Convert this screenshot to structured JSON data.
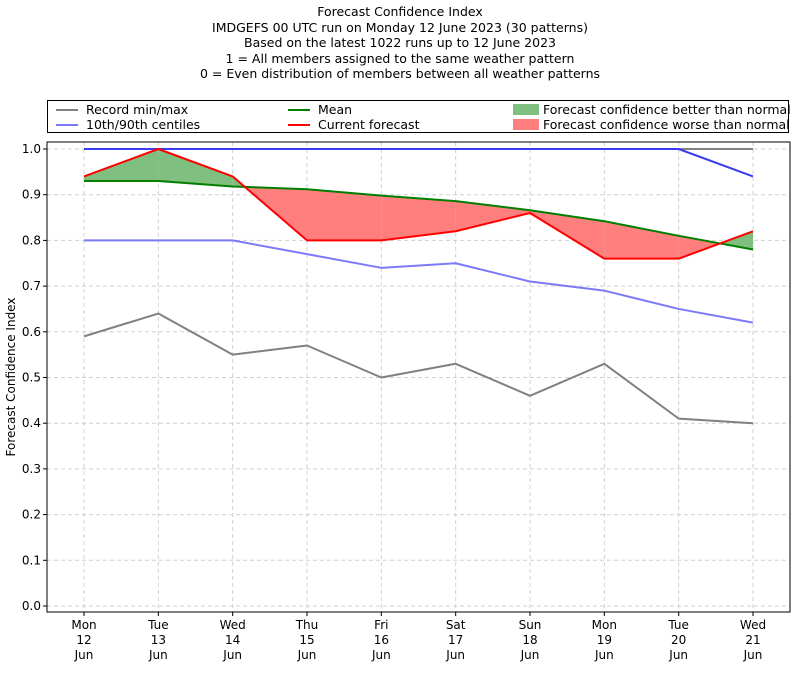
{
  "title_lines": [
    "Forecast Confidence Index",
    "IMDGEFS 00 UTC run on Monday 12 June 2023 (30 patterns)",
    "Based on the latest 1022 runs up to 12 June 2023",
    "1 = All members assigned to the same weather pattern",
    "0 = Even distribution of members between all weather patterns"
  ],
  "legend": {
    "record": "Record min/max",
    "centiles": "10th/90th centiles",
    "mean": "Mean",
    "current": "Current forecast",
    "better": "Forecast confidence better than normal",
    "worse": "Forecast confidence worse than normal"
  },
  "colors": {
    "record": "#808080",
    "centiles": "#7b7bf7",
    "centiles_top": "#3b3bf0",
    "mean": "#007f00",
    "current": "#ff0000",
    "better_fill": "#7fbf7f",
    "worse_fill": "#ff7f7f",
    "grid": "#d0d0d0"
  },
  "chart_data": {
    "type": "line",
    "title": "Forecast Confidence Index",
    "ylabel": "Forecast Confidence Index",
    "xlabel": "",
    "ylim": [
      0,
      1.0
    ],
    "yticks": [
      "0.0",
      "0.1",
      "0.2",
      "0.3",
      "0.4",
      "0.5",
      "0.6",
      "0.7",
      "0.8",
      "0.9",
      "1.0"
    ],
    "grid": true,
    "categories": [
      [
        "Mon",
        "12",
        "Jun"
      ],
      [
        "Tue",
        "13",
        "Jun"
      ],
      [
        "Wed",
        "14",
        "Jun"
      ],
      [
        "Thu",
        "15",
        "Jun"
      ],
      [
        "Fri",
        "16",
        "Jun"
      ],
      [
        "Sat",
        "17",
        "Jun"
      ],
      [
        "Sun",
        "18",
        "Jun"
      ],
      [
        "Mon",
        "19",
        "Jun"
      ],
      [
        "Tue",
        "20",
        "Jun"
      ],
      [
        "Wed",
        "21",
        "Jun"
      ]
    ],
    "series": [
      {
        "name": "Record min/max",
        "role": "record_max",
        "values": [
          1.0,
          1.0,
          1.0,
          1.0,
          1.0,
          1.0,
          1.0,
          1.0,
          1.0,
          1.0
        ]
      },
      {
        "name": "Record min/max",
        "role": "record_min",
        "values": [
          0.59,
          0.64,
          0.55,
          0.57,
          0.5,
          0.53,
          0.46,
          0.53,
          0.41,
          0.4
        ]
      },
      {
        "name": "10th/90th centiles",
        "role": "centile_90",
        "values": [
          1.0,
          1.0,
          1.0,
          1.0,
          1.0,
          1.0,
          1.0,
          1.0,
          1.0,
          0.94
        ]
      },
      {
        "name": "10th/90th centiles",
        "role": "centile_10",
        "values": [
          0.8,
          0.8,
          0.8,
          0.77,
          0.74,
          0.75,
          0.71,
          0.69,
          0.65,
          0.62
        ]
      },
      {
        "name": "Mean",
        "role": "mean",
        "values": [
          0.93,
          0.93,
          0.918,
          0.912,
          0.898,
          0.886,
          0.866,
          0.842,
          0.81,
          0.78
        ]
      },
      {
        "name": "Current forecast",
        "role": "current",
        "values": [
          0.94,
          1.0,
          0.94,
          0.8,
          0.8,
          0.82,
          0.86,
          0.76,
          0.76,
          0.82
        ]
      }
    ]
  }
}
